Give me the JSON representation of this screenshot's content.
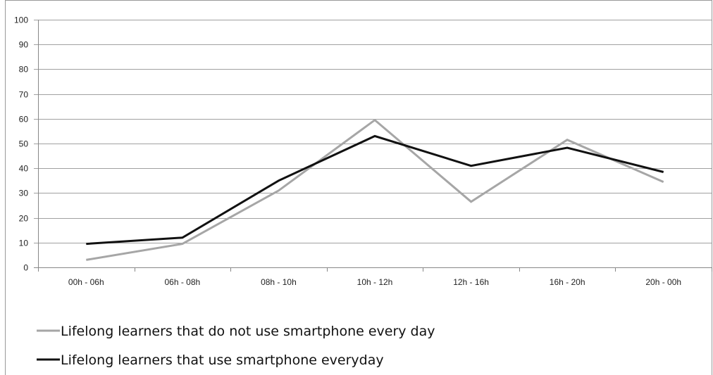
{
  "chart_data": {
    "type": "line",
    "title": "",
    "xlabel": "",
    "ylabel": "",
    "categories": [
      "00h - 06h",
      "06h - 08h",
      "08h - 10h",
      "10h - 12h",
      "12h - 16h",
      "16h - 20h",
      "20h - 00h"
    ],
    "ylim": [
      0,
      100
    ],
    "yticks": [
      0,
      10,
      20,
      30,
      40,
      50,
      60,
      70,
      80,
      90,
      100
    ],
    "grid": true,
    "legend_position": "bottom-left",
    "series": [
      {
        "name": "Lifelong learners that do not use smartphone every day",
        "color": "#a6a6a6",
        "values": [
          3,
          9.5,
          31,
          59.5,
          26.5,
          51.5,
          34.5
        ]
      },
      {
        "name": "Lifelong learners that use smartphone everyday",
        "color": "#111111",
        "values": [
          9.5,
          12,
          35,
          53,
          41,
          48.3,
          38.5
        ]
      }
    ]
  }
}
